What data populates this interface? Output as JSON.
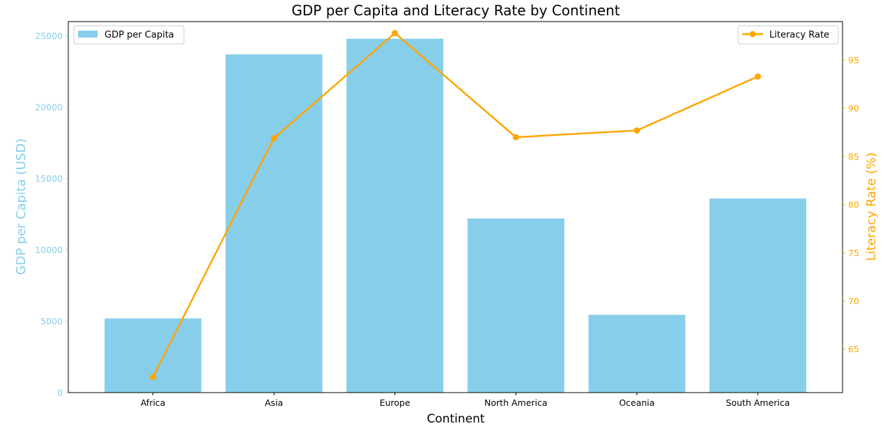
{
  "chart_data": {
    "type": "bar+line",
    "title": "GDP per Capita and Literacy Rate by Continent",
    "xlabel": "Continent",
    "categories": [
      "Africa",
      "Asia",
      "Europe",
      "North America",
      "Oceania",
      "South America"
    ],
    "bar_series": {
      "name": "GDP per Capita",
      "ylabel": "GDP per Capita (USD)",
      "values": [
        5200,
        23700,
        24800,
        12200,
        5450,
        13600
      ],
      "ylim": [
        0,
        26000
      ],
      "ticks": [
        0,
        5000,
        10000,
        15000,
        20000,
        25000
      ],
      "color": "#87ceeb"
    },
    "line_series": {
      "name": "Literacy Rate",
      "ylabel": "Literacy Rate (%)",
      "values": [
        62.1,
        86.9,
        97.8,
        87.0,
        87.7,
        93.3
      ],
      "ylim": [
        60.5,
        99.0
      ],
      "ticks": [
        65,
        70,
        75,
        80,
        85,
        90,
        95
      ],
      "color": "#ffa500"
    },
    "legend_left": "top-left",
    "legend_right": "top-right",
    "grid": false
  }
}
